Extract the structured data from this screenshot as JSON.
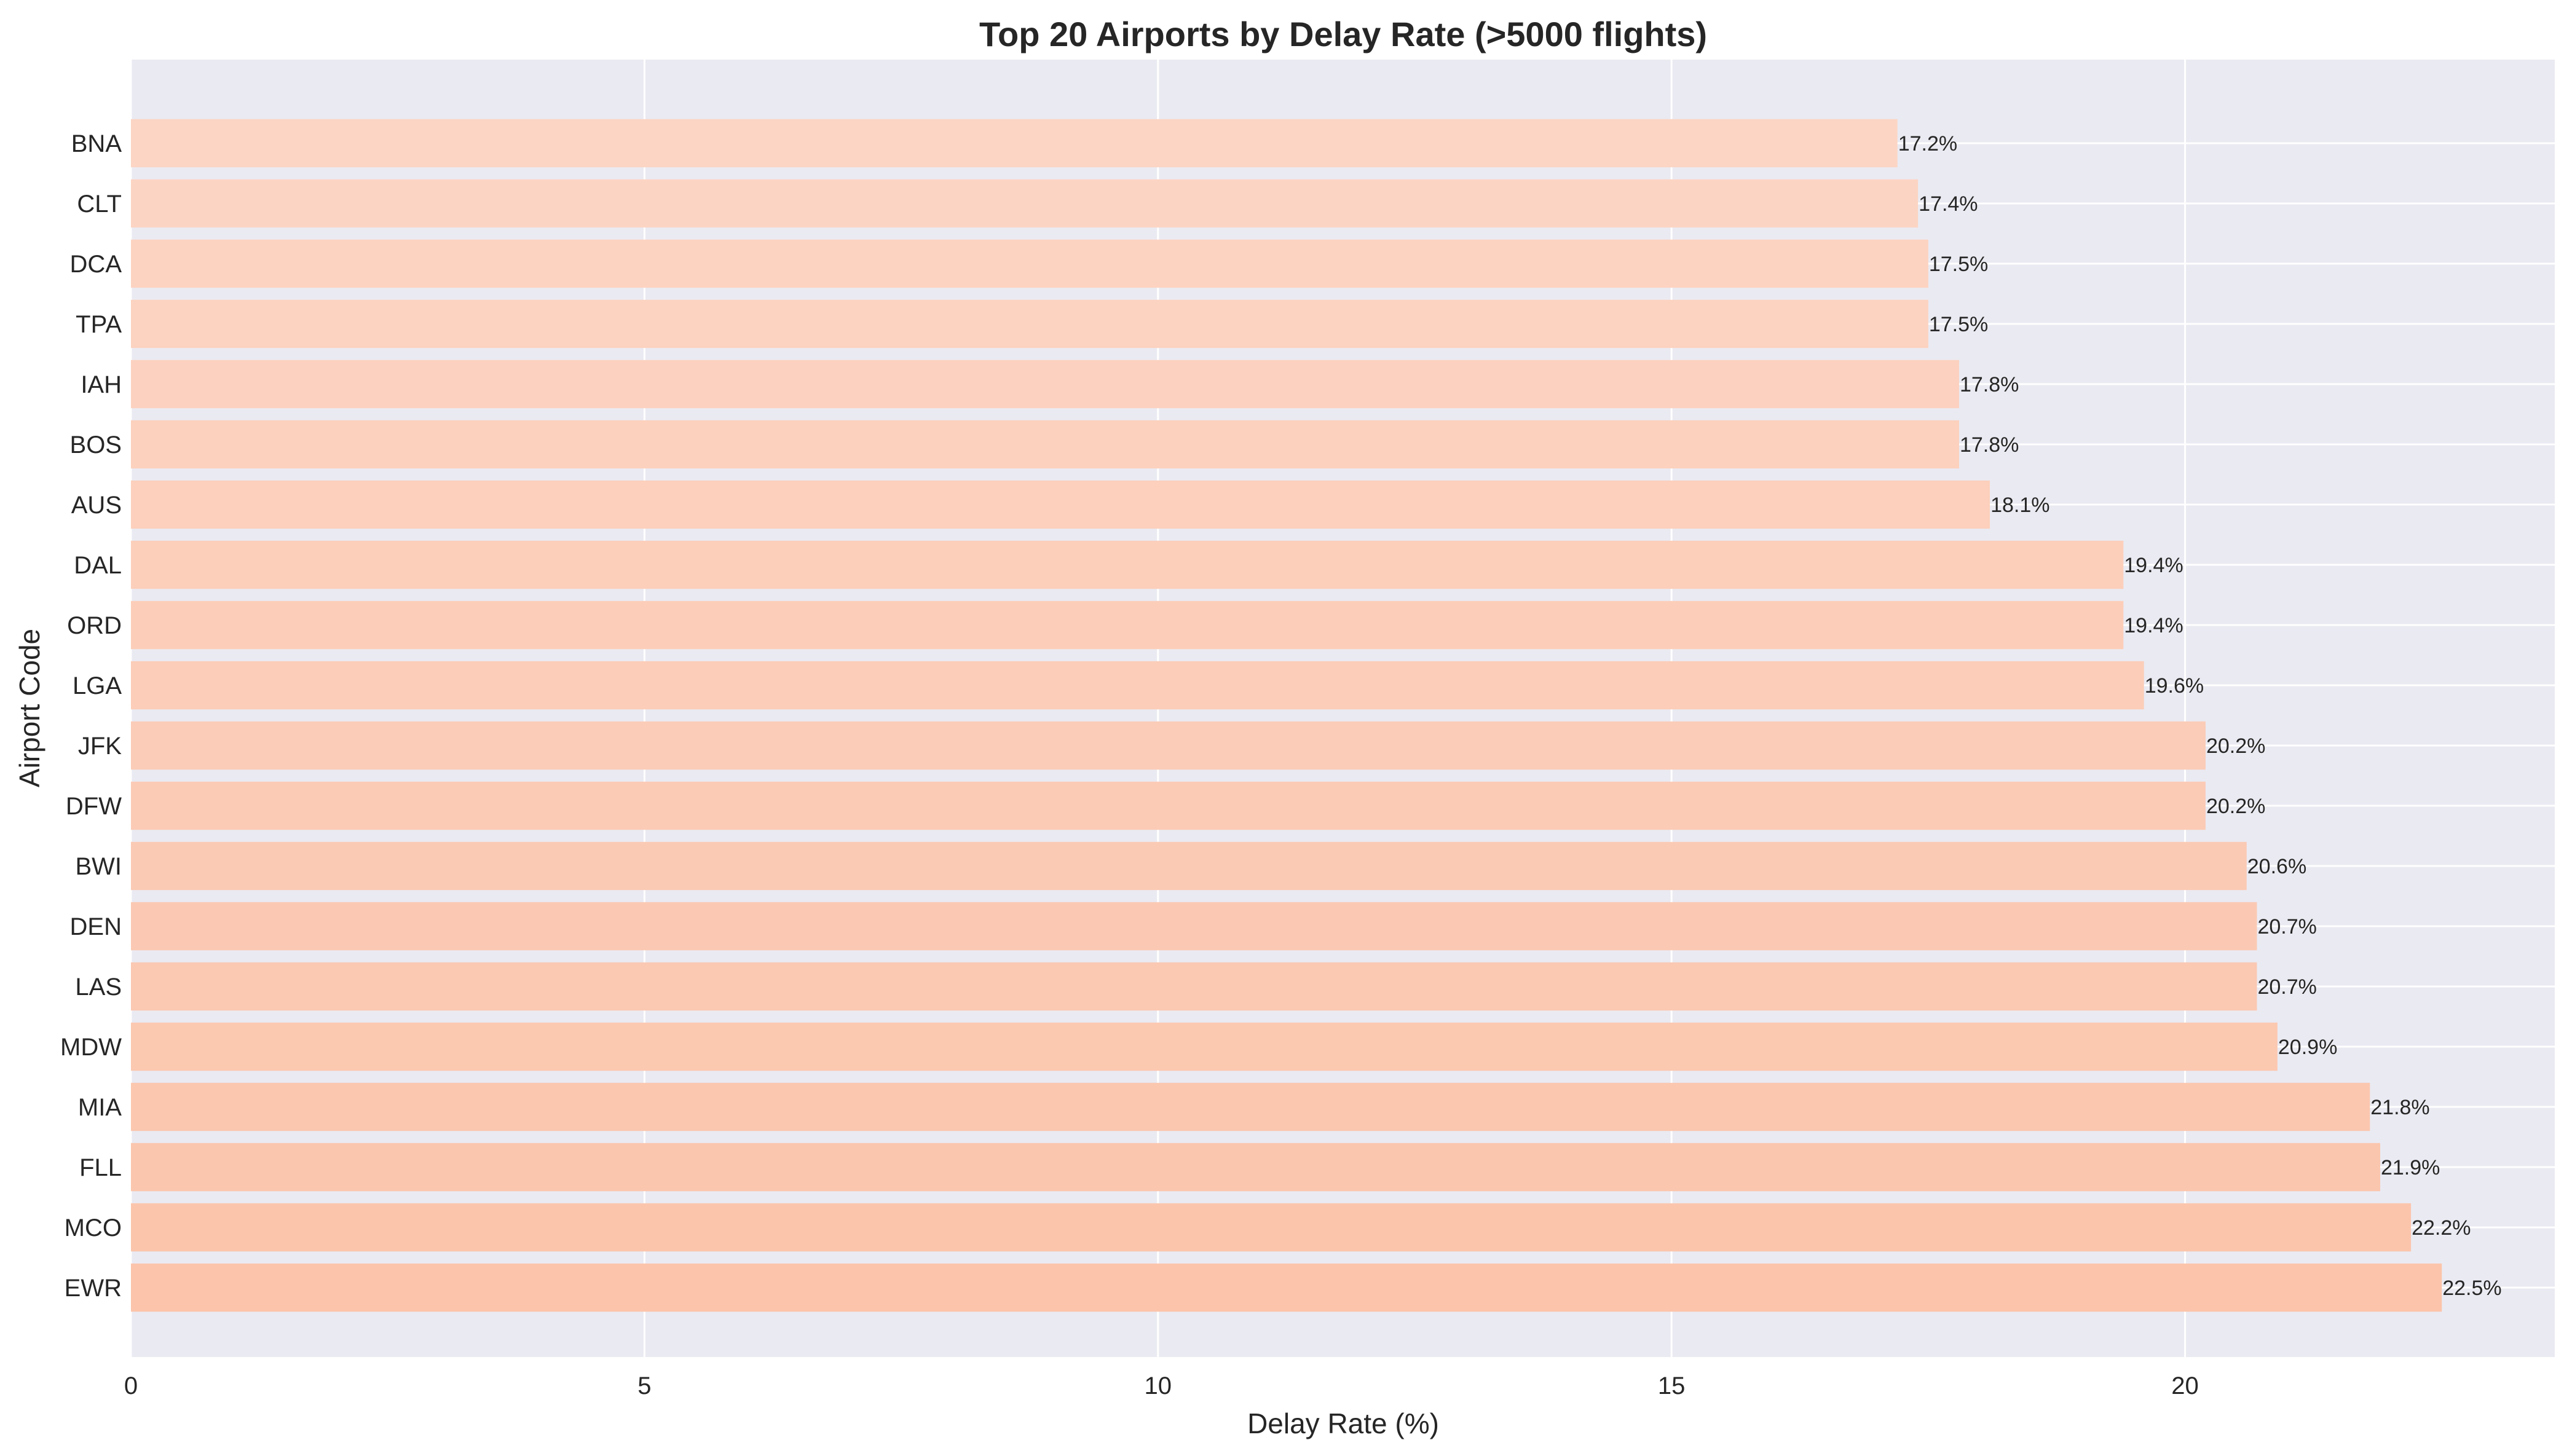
{
  "chart_data": {
    "type": "bar",
    "orientation": "horizontal",
    "title": "Top 20 Airports by Delay Rate (>5000 flights)",
    "xlabel": "Delay Rate (%)",
    "ylabel": "Airport Code",
    "xlim": [
      0,
      23.6
    ],
    "xticks": [
      0,
      5,
      10,
      15,
      20
    ],
    "grid": true,
    "categories": [
      "BNA",
      "CLT",
      "DCA",
      "TPA",
      "IAH",
      "BOS",
      "AUS",
      "DAL",
      "ORD",
      "LGA",
      "JFK",
      "DFW",
      "BWI",
      "DEN",
      "LAS",
      "MDW",
      "MIA",
      "FLL",
      "MCO",
      "EWR"
    ],
    "values": [
      17.2,
      17.4,
      17.5,
      17.5,
      17.8,
      17.8,
      18.1,
      19.4,
      19.4,
      19.6,
      20.2,
      20.2,
      20.6,
      20.7,
      20.7,
      20.9,
      21.8,
      21.9,
      22.2,
      22.5
    ],
    "data_labels": [
      "17.2%",
      "17.4%",
      "17.5%",
      "17.5%",
      "17.8%",
      "17.8%",
      "18.1%",
      "19.4%",
      "19.4%",
      "19.6%",
      "20.2%",
      "20.2%",
      "20.6%",
      "20.7%",
      "20.7%",
      "20.9%",
      "21.8%",
      "21.9%",
      "22.2%",
      "22.5%"
    ],
    "colors": {
      "plot_background": "#eaeaf2",
      "grid": "#ffffff",
      "bar_light": "#fcd5c4",
      "bar_dark": "#fbc4ab",
      "text": "#262626"
    }
  }
}
